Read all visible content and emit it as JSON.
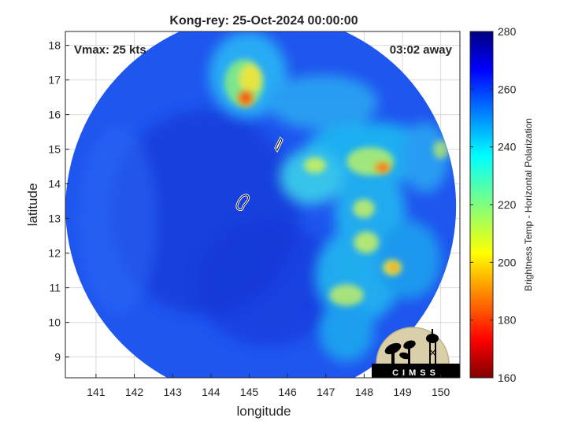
{
  "title": "Kong-rey: 25-Oct-2024 00:00:00",
  "annotations": {
    "vmax": "Vmax: 25 kts",
    "away": "03:02 away"
  },
  "axes": {
    "xlabel": "longitude",
    "ylabel": "latitude",
    "xlim": [
      140.2,
      150.5
    ],
    "ylim": [
      8.4,
      18.4
    ],
    "xticks": [
      "141",
      "142",
      "143",
      "144",
      "145",
      "146",
      "147",
      "148",
      "149",
      "150"
    ],
    "yticks": [
      "9",
      "10",
      "11",
      "12",
      "13",
      "14",
      "15",
      "16",
      "17",
      "18"
    ],
    "grid": true
  },
  "colorbar": {
    "label": "Brightness Temp - Horizontal Polarization",
    "ticks": [
      "280",
      "260",
      "240",
      "220",
      "200",
      "180",
      "160"
    ],
    "range": [
      160,
      280
    ],
    "colormap": "jet"
  },
  "swath": {
    "center_lon": 145.3,
    "center_lat": 13.35,
    "radius_deg": 5.1,
    "background_temp": 262
  },
  "logo": {
    "text": "CIMSS"
  },
  "colors": {
    "frame": "#262626",
    "grid": "#d9d9d9",
    "storm_marker": "#ffffff"
  }
}
